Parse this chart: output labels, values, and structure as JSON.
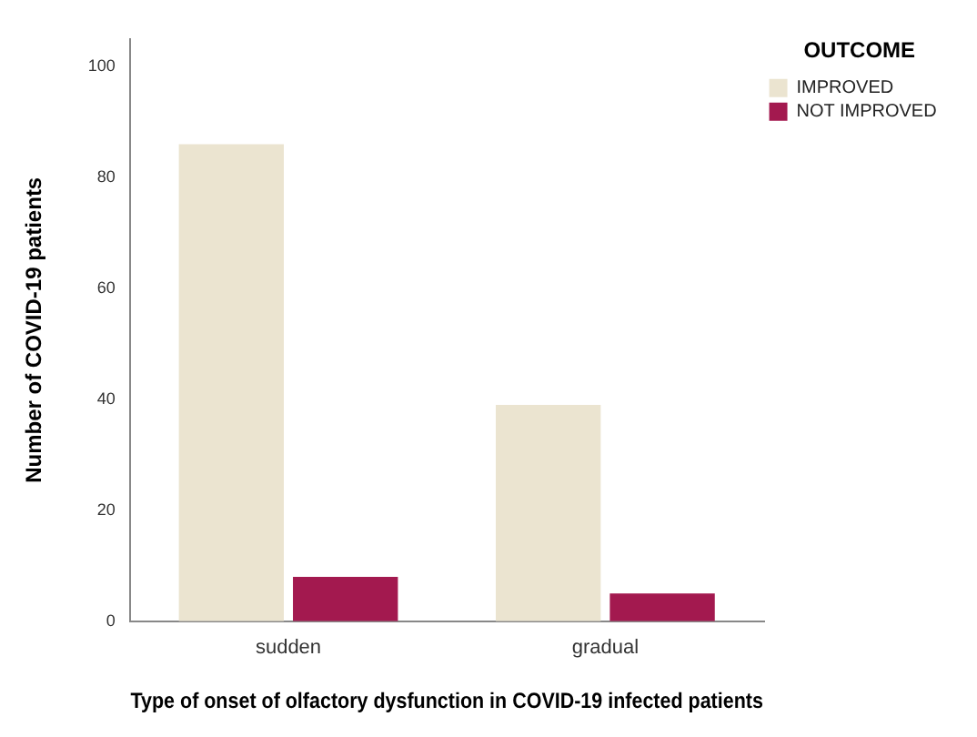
{
  "chart_data": {
    "type": "bar",
    "xlabel": "Type of onset of olfactory dysfunction in COVID-19 infected patients",
    "ylabel": "Number of COVID-19 patients",
    "legend_title": "OUTCOME",
    "categories": [
      "sudden",
      "gradual"
    ],
    "series": [
      {
        "name": "IMPROVED",
        "color": "#ebe4d0",
        "values": [
          86,
          39
        ]
      },
      {
        "name": "NOT IMPROVED",
        "color": "#a3194f",
        "values": [
          8,
          5
        ]
      }
    ],
    "ylim": [
      0,
      105
    ],
    "yticks": [
      0,
      20,
      40,
      60,
      80,
      100
    ],
    "grid": false,
    "legend": "top right"
  }
}
